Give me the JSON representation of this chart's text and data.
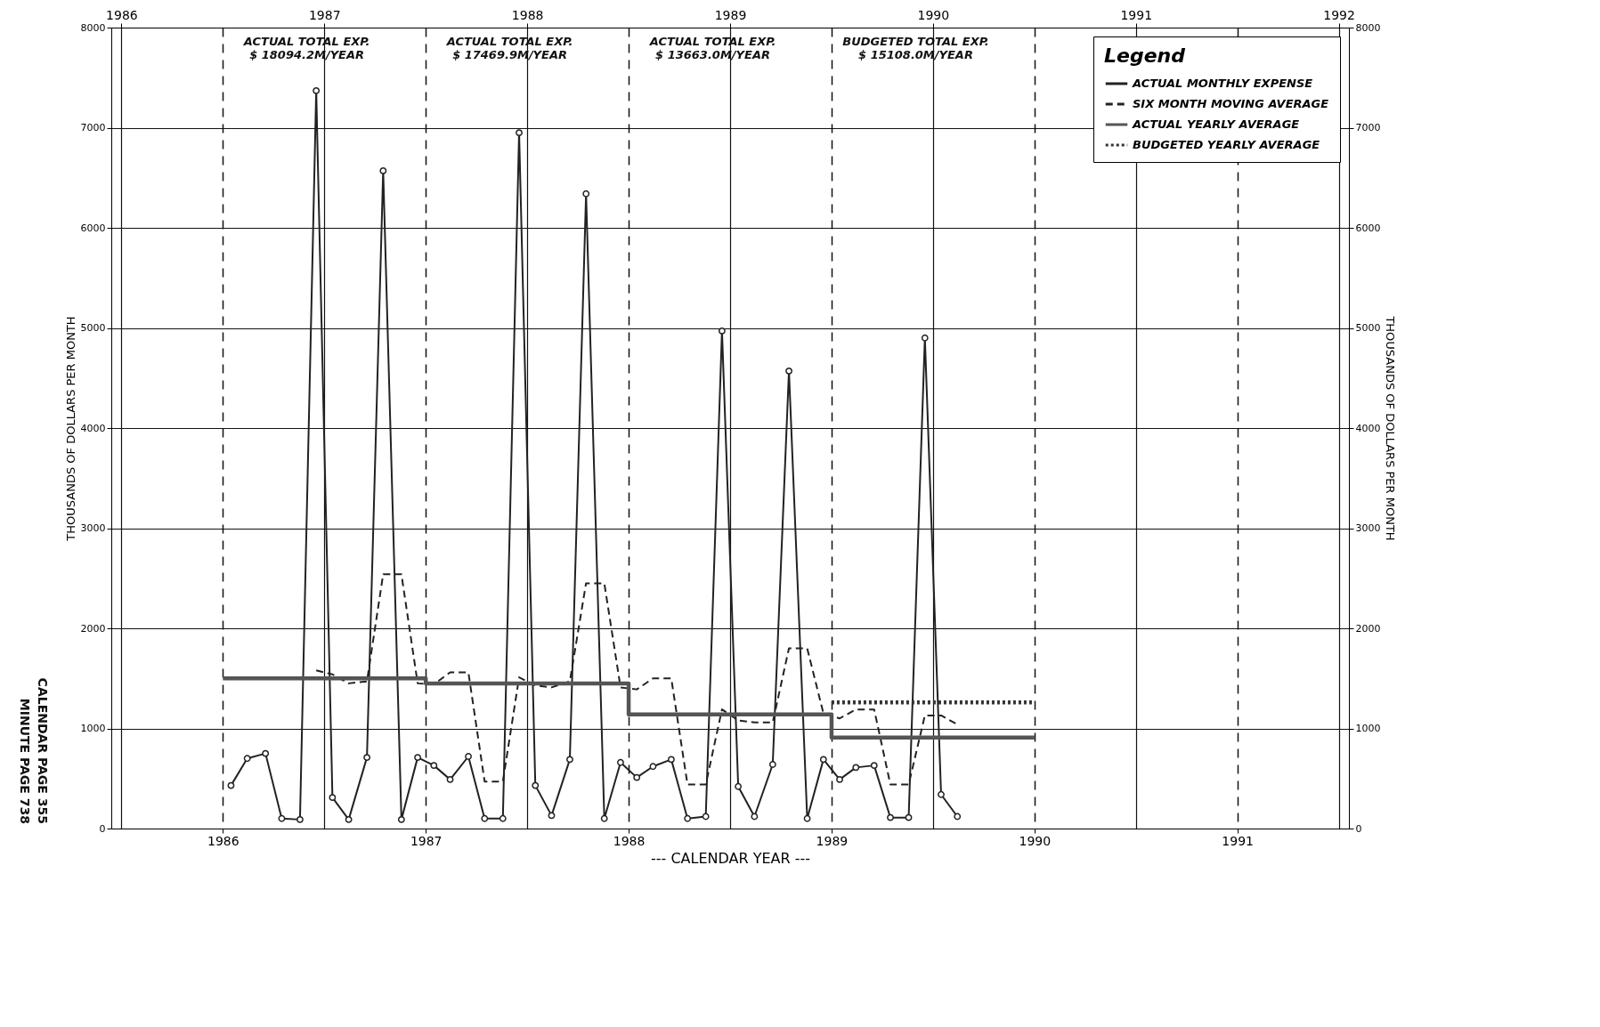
{
  "chart_data": {
    "type": "line",
    "xlabel": "--- CALENDAR YEAR ---",
    "ylabel": "THOUSANDS OF DOLLARS PER MONTH",
    "y2label": "THOUSANDS OF DOLLARS PER MONTH",
    "legend_title": "Legend",
    "legend": "top right",
    "grid": true,
    "xlim": [
      1985.45,
      1991.55
    ],
    "xticks": [
      1986,
      1987,
      1988,
      1989,
      1990,
      1991
    ],
    "x2lim": [
      1985.95,
      1992.05
    ],
    "x2ticks": [
      1986,
      1987,
      1988,
      1989,
      1990,
      1991,
      1992
    ],
    "ylim": [
      0,
      8000
    ],
    "yticks": [
      0,
      1000,
      2000,
      3000,
      4000,
      5000,
      6000,
      7000,
      8000
    ],
    "y2lim": [
      0,
      8000
    ],
    "y2ticks": [
      0,
      1000,
      2000,
      3000,
      4000,
      5000,
      6000,
      7000,
      8000
    ],
    "series": [
      {
        "name": "ACTUAL MONTHLY EXPENSE",
        "marker": "circle",
        "line_style": "solid",
        "color": "#222222",
        "x": [
          1986.04,
          1986.12,
          1986.21,
          1986.29,
          1986.38,
          1986.46,
          1986.54,
          1986.62,
          1986.71,
          1986.79,
          1986.88,
          1986.96,
          1987.04,
          1987.12,
          1987.21,
          1987.29,
          1987.38,
          1987.46,
          1987.54,
          1987.62,
          1987.71,
          1987.79,
          1987.88,
          1987.96,
          1988.04,
          1988.12,
          1988.21,
          1988.29,
          1988.38,
          1988.46,
          1988.54,
          1988.62,
          1988.71,
          1988.79,
          1988.88,
          1988.96,
          1989.04,
          1989.12,
          1989.21,
          1989.29,
          1989.38,
          1989.46,
          1989.54,
          1989.62
        ],
        "values": [
          430,
          700,
          750,
          100,
          90,
          7370,
          310,
          90,
          710,
          6570,
          90,
          710,
          630,
          490,
          720,
          100,
          100,
          6950,
          430,
          130,
          690,
          6340,
          100,
          660,
          510,
          620,
          690,
          100,
          120,
          4970,
          420,
          120,
          640,
          4570,
          100,
          690,
          490,
          610,
          630,
          110,
          110,
          4900,
          340,
          120
        ]
      },
      {
        "name": "SIX MONTH MOVING AVERAGE",
        "marker": "none",
        "line_style": "dashed",
        "color": "#222222",
        "x": [
          1986.46,
          1986.54,
          1986.62,
          1986.71,
          1986.79,
          1986.88,
          1986.96,
          1987.04,
          1987.12,
          1987.21,
          1987.29,
          1987.38,
          1987.46,
          1987.54,
          1987.62,
          1987.71,
          1987.79,
          1987.88,
          1987.96,
          1988.04,
          1988.12,
          1988.21,
          1988.29,
          1988.38,
          1988.46,
          1988.54,
          1988.62,
          1988.71,
          1988.79,
          1988.88,
          1988.96,
          1989.04,
          1989.12,
          1989.21,
          1989.29,
          1989.38,
          1989.46,
          1989.54,
          1989.62
        ],
        "values": [
          1580,
          1540,
          1450,
          1470,
          2540,
          2540,
          1450,
          1440,
          1560,
          1560,
          470,
          470,
          1510,
          1430,
          1410,
          1470,
          2450,
          2450,
          1410,
          1390,
          1500,
          1500,
          440,
          440,
          1190,
          1080,
          1060,
          1060,
          1800,
          1800,
          1150,
          1100,
          1190,
          1190,
          440,
          440,
          1130,
          1130,
          1040
        ]
      },
      {
        "name": "ACTUAL YEARLY AVERAGE",
        "type": "step",
        "marker": "none",
        "line_style": "solid",
        "color": "#555555",
        "x": [
          1986,
          1987,
          1988,
          1989,
          1990
        ],
        "values": [
          1500,
          1450,
          1140,
          910,
          910
        ]
      },
      {
        "name": "BUDGETED YEARLY AVERAGE",
        "type": "step",
        "marker": "none",
        "line_style": "dotted",
        "color": "#333333",
        "x": [
          1989,
          1990
        ],
        "values": [
          1260,
          1260
        ]
      }
    ],
    "annotations": [
      "ACTUAL TOTAL EXP.\n$ 18094.2M/YEAR",
      "ACTUAL TOTAL EXP.\n$ 17469.9M/YEAR",
      "ACTUAL TOTAL EXP.\n$ 13663.0M/YEAR",
      "BUDGETED TOTAL EXP.\n$ 15108.0M/YEAR",
      "CALENDAR PAGE 355",
      "MINUTE PAGE 738"
    ]
  }
}
